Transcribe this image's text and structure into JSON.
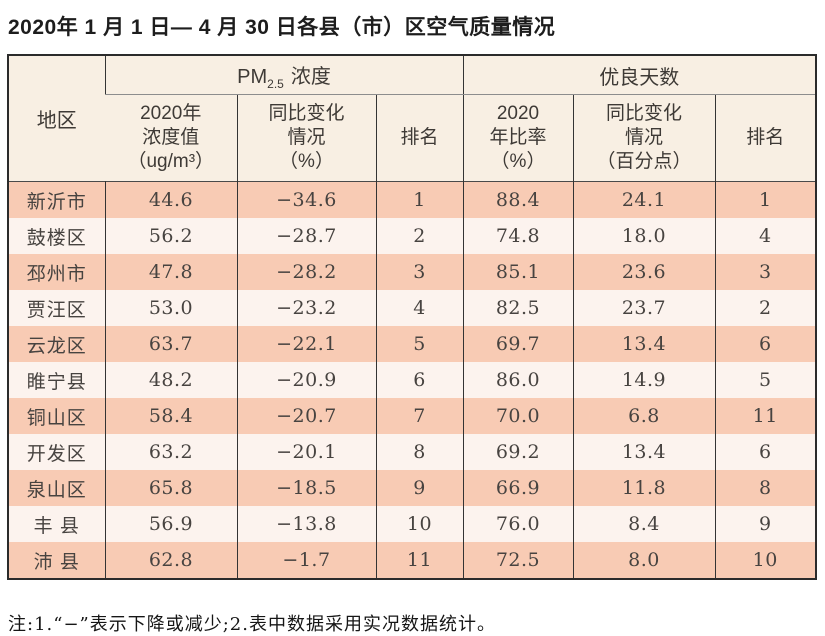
{
  "page": {
    "title": "2020年 1 月 1 日— 4 月 30 日各县（市）区空气质量情况",
    "note": "注:1.“−”表示下降或减少;2.表中数据采用实况数据统计。"
  },
  "colors": {
    "header_bg": "#f8efe3",
    "row_salmon": "#f8cbb4",
    "row_light": "#fcf3ee",
    "border_dark": "#2b2b2b",
    "header_divider_gray": "#8d8d8d"
  },
  "table": {
    "header": {
      "region": "地区",
      "pm25_group": {
        "prefix": "PM",
        "sub": "2.5",
        "suffix": "浓度"
      },
      "good_days_group": "优良天数",
      "sub_headers": [
        "2020年\n浓度值\n（ug/m³）",
        "同比变化\n情况\n（%）",
        "排名",
        "2020\n年比率\n（%）",
        "同比变化\n情况\n（百分点）",
        "排名"
      ]
    },
    "rows": [
      [
        "新沂市",
        "44.6",
        "−34.6",
        "1",
        "88.4",
        "24.1",
        "1"
      ],
      [
        "鼓楼区",
        "56.2",
        "−28.7",
        "2",
        "74.8",
        "18.0",
        "4"
      ],
      [
        "邳州市",
        "47.8",
        "−28.2",
        "3",
        "85.1",
        "23.6",
        "3"
      ],
      [
        "贾汪区",
        "53.0",
        "−23.2",
        "4",
        "82.5",
        "23.7",
        "2"
      ],
      [
        "云龙区",
        "63.7",
        "−22.1",
        "5",
        "69.7",
        "13.4",
        "6"
      ],
      [
        "睢宁县",
        "48.2",
        "−20.9",
        "6",
        "86.0",
        "14.9",
        "5"
      ],
      [
        "铜山区",
        "58.4",
        "−20.7",
        "7",
        "70.0",
        "6.8",
        "11"
      ],
      [
        "开发区",
        "63.2",
        "−20.1",
        "8",
        "69.2",
        "13.4",
        "6"
      ],
      [
        "泉山区",
        "65.8",
        "−18.5",
        "9",
        "66.9",
        "11.8",
        "8"
      ],
      [
        "丰 县",
        "56.9",
        "−13.8",
        "10",
        "76.0",
        "8.4",
        "9"
      ],
      [
        "沛 县",
        "62.8",
        "−1.7",
        "11",
        "72.5",
        "8.0",
        "10"
      ]
    ]
  }
}
